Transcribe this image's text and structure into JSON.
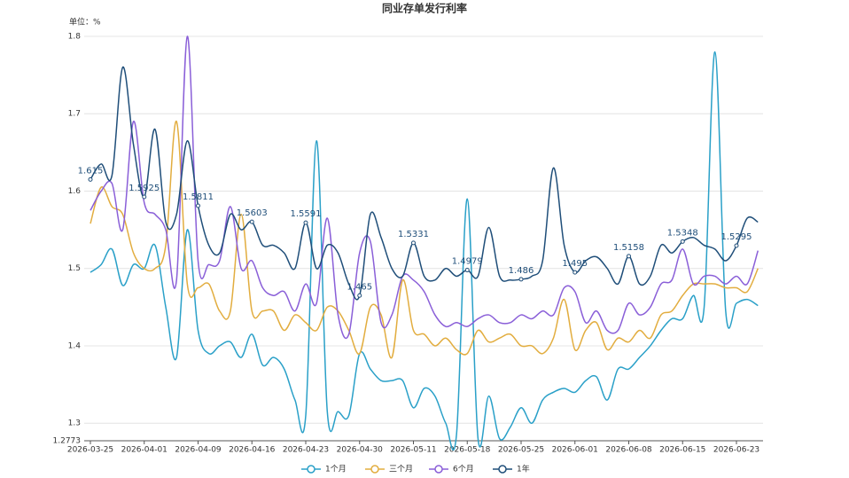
{
  "chart_data": {
    "type": "line",
    "title": "同业存单发行利率",
    "unit_label": "单位：%",
    "categories": [
      "2026-03-25",
      null,
      null,
      null,
      null,
      "2026-04-01",
      null,
      null,
      null,
      null,
      "2026-04-09",
      null,
      null,
      null,
      null,
      "2026-04-16",
      null,
      null,
      null,
      null,
      "2026-04-23",
      null,
      null,
      null,
      null,
      "2026-04-30",
      null,
      null,
      null,
      null,
      "2026-05-11",
      null,
      null,
      null,
      null,
      "2026-05-18",
      null,
      null,
      null,
      null,
      "2026-05-25",
      null,
      null,
      null,
      null,
      "2026-06-01",
      null,
      null,
      null,
      null,
      "2026-06-08",
      null,
      null,
      null,
      null,
      "2026-06-15",
      null,
      null,
      null,
      null,
      "2026-06-23",
      null,
      null
    ],
    "ylim": [
      1.2773,
      1.8
    ],
    "yticks": [
      1.2773,
      1.3,
      1.4,
      1.5,
      1.6,
      1.7,
      1.8
    ],
    "grid": true,
    "smooth": true,
    "legend": "bottom",
    "series": [
      {
        "name": "1个月",
        "color": "#2aa0c8",
        "values": [
          1.495,
          1.505,
          1.525,
          1.478,
          1.505,
          1.5,
          1.53,
          1.45,
          1.385,
          1.55,
          1.42,
          1.39,
          1.4,
          1.405,
          1.385,
          1.415,
          1.375,
          1.385,
          1.37,
          1.33,
          1.31,
          1.665,
          1.315,
          1.315,
          1.31,
          1.39,
          1.37,
          1.355,
          1.355,
          1.355,
          1.32,
          1.345,
          1.335,
          1.3,
          1.285,
          1.59,
          1.28,
          1.335,
          1.28,
          1.295,
          1.32,
          1.3,
          1.33,
          1.34,
          1.345,
          1.34,
          1.355,
          1.36,
          1.33,
          1.37,
          1.37,
          1.385,
          1.4,
          1.42,
          1.435,
          1.435,
          1.465,
          1.45,
          1.78,
          1.445,
          1.455,
          1.46,
          1.452
        ]
      },
      {
        "name": "三个月",
        "color": "#e2ad3f",
        "values": [
          1.558,
          1.605,
          1.58,
          1.57,
          1.52,
          1.5,
          1.5,
          1.53,
          1.69,
          1.48,
          1.475,
          1.48,
          1.445,
          1.445,
          1.57,
          1.445,
          1.445,
          1.445,
          1.42,
          1.44,
          1.43,
          1.42,
          1.45,
          1.445,
          1.42,
          1.39,
          1.45,
          1.44,
          1.385,
          1.485,
          1.42,
          1.415,
          1.4,
          1.41,
          1.395,
          1.39,
          1.42,
          1.405,
          1.41,
          1.415,
          1.4,
          1.4,
          1.39,
          1.41,
          1.46,
          1.395,
          1.42,
          1.43,
          1.395,
          1.41,
          1.405,
          1.42,
          1.41,
          1.44,
          1.445,
          1.465,
          1.48,
          1.48,
          1.48,
          1.475,
          1.475,
          1.47,
          1.5
        ]
      },
      {
        "name": "6个月",
        "color": "#8a5fd8",
        "values": [
          1.575,
          1.6,
          1.61,
          1.55,
          1.69,
          1.585,
          1.57,
          1.55,
          1.485,
          1.8,
          1.51,
          1.505,
          1.51,
          1.58,
          1.5,
          1.51,
          1.475,
          1.465,
          1.47,
          1.445,
          1.48,
          1.455,
          1.565,
          1.44,
          1.415,
          1.52,
          1.535,
          1.43,
          1.44,
          1.49,
          1.485,
          1.47,
          1.44,
          1.425,
          1.43,
          1.425,
          1.435,
          1.44,
          1.43,
          1.43,
          1.44,
          1.435,
          1.445,
          1.44,
          1.475,
          1.47,
          1.43,
          1.445,
          1.42,
          1.42,
          1.455,
          1.44,
          1.45,
          1.48,
          1.485,
          1.525,
          1.48,
          1.49,
          1.49,
          1.48,
          1.49,
          1.48,
          1.523
        ]
      },
      {
        "name": "1年",
        "color": "#1f4e79",
        "label_interval": 5,
        "values": [
          1.615,
          1.635,
          1.62,
          1.76,
          1.66,
          1.5925,
          1.68,
          1.56,
          1.57,
          1.665,
          1.5811,
          1.53,
          1.52,
          1.57,
          1.55,
          1.5603,
          1.53,
          1.53,
          1.52,
          1.5,
          1.5591,
          1.5,
          1.53,
          1.52,
          1.48,
          1.465,
          1.57,
          1.54,
          1.5,
          1.49,
          1.5331,
          1.49,
          1.485,
          1.5,
          1.49,
          1.4979,
          1.49,
          1.553,
          1.49,
          1.485,
          1.486,
          1.49,
          1.51,
          1.63,
          1.53,
          1.495,
          1.51,
          1.515,
          1.5,
          1.48,
          1.5158,
          1.48,
          1.49,
          1.53,
          1.52,
          1.5348,
          1.54,
          1.53,
          1.525,
          1.51,
          1.5295,
          1.565,
          1.56
        ]
      }
    ]
  }
}
